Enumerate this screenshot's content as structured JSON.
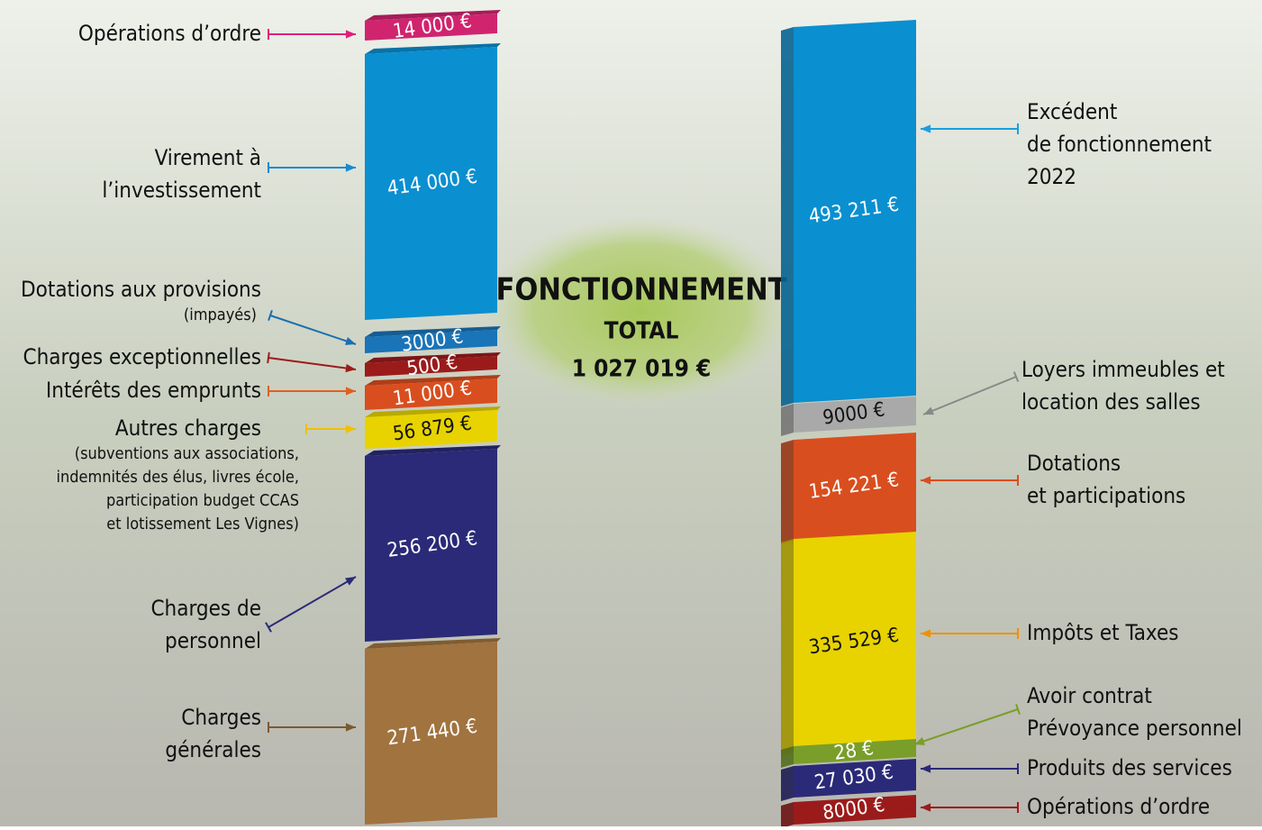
{
  "center": {
    "title": "FONCTIONNEMENT",
    "subtitle": "TOTAL",
    "total": "1 027 019 €"
  },
  "expenses": [
    {
      "label": [
        "Opérations d’ordre"
      ],
      "amount": "14 000 €"
    },
    {
      "label": [
        "Virement à",
        "l’investissement"
      ],
      "amount": "414 000 €"
    },
    {
      "label": [
        "Dotations aux provisions"
      ],
      "note": [
        "(impayés)"
      ],
      "amount": "3000 €"
    },
    {
      "label": [
        "Charges exceptionnelles"
      ],
      "amount": "500 €"
    },
    {
      "label": [
        "Intérêts des emprunts"
      ],
      "amount": "11 000 €"
    },
    {
      "label": [
        "Autres charges"
      ],
      "note": [
        "(subventions aux associations,",
        "indemnités des élus, livres école,",
        "participation budget CCAS",
        "et lotissement Les Vignes)"
      ],
      "amount": "56 879 €"
    },
    {
      "label": [
        "Charges de",
        "personnel"
      ],
      "amount": "256 200 €"
    },
    {
      "label": [
        "Charges",
        "générales"
      ],
      "amount": "271 440 €"
    }
  ],
  "revenues": [
    {
      "label": [
        "Excédent",
        "de fonctionnement",
        "2022"
      ],
      "amount": "493 211 €"
    },
    {
      "label": [
        "Loyers immeubles et",
        "location des salles"
      ],
      "amount": "9000 €"
    },
    {
      "label": [
        "Dotations",
        "et participations"
      ],
      "amount": "154 221 €"
    },
    {
      "label": [
        "Impôts et Taxes"
      ],
      "amount": "335 529 €"
    },
    {
      "label": [
        "Avoir contrat",
        "Prévoyance personnel"
      ],
      "amount": "28 €"
    },
    {
      "label": [
        "Produits des services"
      ],
      "amount": "27 030 €"
    },
    {
      "label": [
        "Opérations d’ordre"
      ],
      "amount": "8000 €"
    }
  ]
}
